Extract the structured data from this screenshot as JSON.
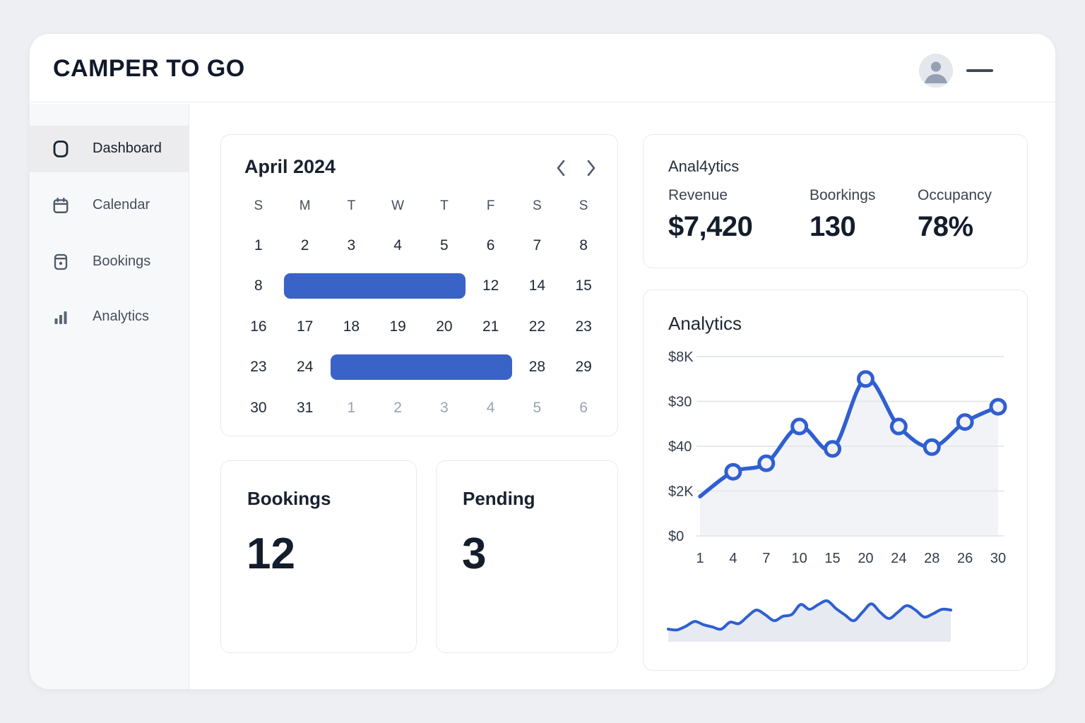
{
  "header": {
    "title": "CAMPER TO GO"
  },
  "icons": {
    "avatar": "user-avatar-icon",
    "menu": "minimize-dash-icon",
    "prev": "chevron-left-icon",
    "next": "chevron-right-icon",
    "nav": [
      "dashboard-icon",
      "calendar-icon",
      "bookings-icon",
      "analytics-bars-icon"
    ]
  },
  "sidebar": {
    "items": [
      {
        "label": "Dashboard",
        "active": true
      },
      {
        "label": "Calendar",
        "active": false
      },
      {
        "label": "Bookings",
        "active": false
      },
      {
        "label": "Analytics",
        "active": false
      }
    ]
  },
  "calendar": {
    "title": "April 2024",
    "day_headers": [
      "S",
      "M",
      "T",
      "W",
      "T",
      "F",
      "S",
      "S"
    ],
    "weeks": [
      {
        "cells": [
          "1",
          "2",
          "3",
          "4",
          "5",
          "6",
          "7",
          "8"
        ]
      },
      {
        "cells": [
          "8",
          "",
          "",
          "",
          "",
          "12",
          "14",
          "15"
        ],
        "bar": {
          "start": 1,
          "end": 4
        }
      },
      {
        "cells": [
          "16",
          "17",
          "18",
          "19",
          "20",
          "21",
          "22",
          "23"
        ]
      },
      {
        "cells": [
          "23",
          "24",
          "",
          "",
          "",
          "",
          "28",
          "29"
        ],
        "bar": {
          "start": 2,
          "end": 5
        }
      },
      {
        "cells": [
          "30",
          "31",
          "1",
          "2",
          "3",
          "4",
          "5",
          "6"
        ],
        "muted_from": 2
      }
    ]
  },
  "stats": {
    "title": "Anal4ytics",
    "items": [
      {
        "label": "Revenue",
        "value": "$7,420"
      },
      {
        "label": "Boorkings",
        "value": "130"
      },
      {
        "label": "Occupancy",
        "value": "78%"
      }
    ]
  },
  "analytics_card": {
    "title": "Analytics"
  },
  "bookings_card": {
    "title": "Bookings",
    "value": "12"
  },
  "pending_card": {
    "title": "Pending",
    "value": "3"
  },
  "chart_data": [
    {
      "type": "line",
      "title": "Analytics",
      "x_tick_labels": [
        "1",
        "4",
        "7",
        "10",
        "15",
        "20",
        "24",
        "28",
        "26",
        "30"
      ],
      "y_tick_labels": [
        "$8K",
        "$30",
        "$40",
        "$2K",
        "$0"
      ],
      "note": "y ticks listed top-to-bottom exactly as displayed; values are in grid units where 0 = the $0 gridline and 4 = the $8K gridline",
      "values_grid_units": [
        0.88,
        1.43,
        1.62,
        2.44,
        1.94,
        3.5,
        2.44,
        1.98,
        2.54,
        2.88
      ],
      "marker_on_first_point": false,
      "grid": true,
      "legend": false,
      "area_fill": true
    },
    {
      "type": "area",
      "title": "sparkline (no axes)",
      "values_0_100": [
        23,
        21,
        31,
        44,
        35,
        29,
        23,
        42,
        38,
        58,
        75,
        62,
        46,
        58,
        63,
        90,
        77,
        90,
        100,
        79,
        62,
        46,
        69,
        92,
        69,
        52,
        69,
        87,
        75,
        56,
        65,
        77,
        75
      ]
    }
  ],
  "colors": {
    "accent_blue": "#3a63c8",
    "chart_line_blue": "#2f5fd1",
    "page_bg": "#edeff2",
    "sidebar_bg": "#f7f8fa",
    "card_border": "#e8eaed",
    "grid_line": "#e5e8ec",
    "muted_text": "#9aa3ae",
    "dark_text": "#131d2b"
  }
}
